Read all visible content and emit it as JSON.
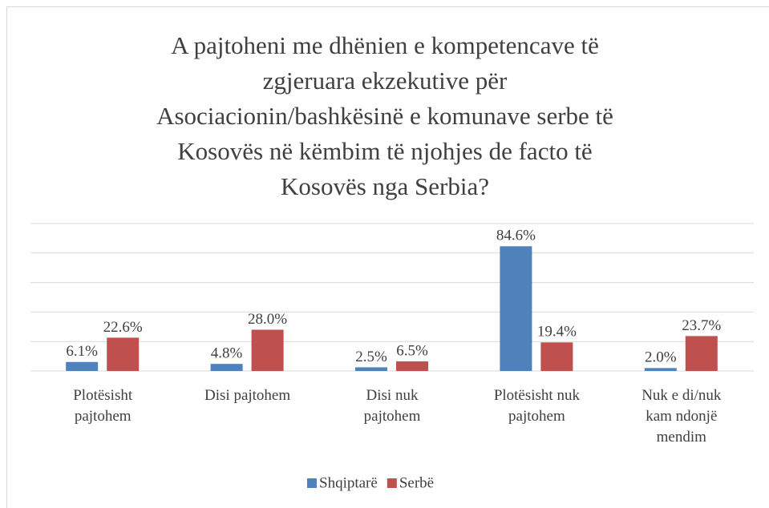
{
  "chart_data": {
    "type": "bar",
    "title": [
      "A pajtoheni me dhënien e kompetencave të",
      "zgjeruara ekzekutive për",
      "Asociacionin/bashkësinë e komunave serbe të",
      "Kosovës në këmbim të njohjes de facto të",
      "Kosovës nga Serbia?"
    ],
    "categories": [
      "Plotësisht\npajtohem",
      "Disi pajtohem",
      "Disi nuk\npajtohem",
      "Plotësisht nuk\npajtohem",
      "Nuk e di/nuk\nkam ndonjë\nmendim"
    ],
    "series": [
      {
        "name": "Shqiptarë",
        "color": "#4f81bd",
        "values": [
          6.1,
          4.8,
          2.5,
          84.6,
          2.0
        ],
        "value_labels": [
          "6.1%",
          "4.8%",
          "2.5%",
          "84.6%",
          "2.0%"
        ]
      },
      {
        "name": "Serbë",
        "color": "#c0504d",
        "values": [
          22.6,
          28.0,
          6.5,
          19.4,
          23.7
        ],
        "value_labels": [
          "22.6%",
          "28.0%",
          "6.5%",
          "19.4%",
          "23.7%"
        ]
      }
    ],
    "ylim": [
      0,
      100
    ],
    "yticks": [
      0,
      20,
      40,
      60,
      80,
      100
    ],
    "grid": true
  }
}
